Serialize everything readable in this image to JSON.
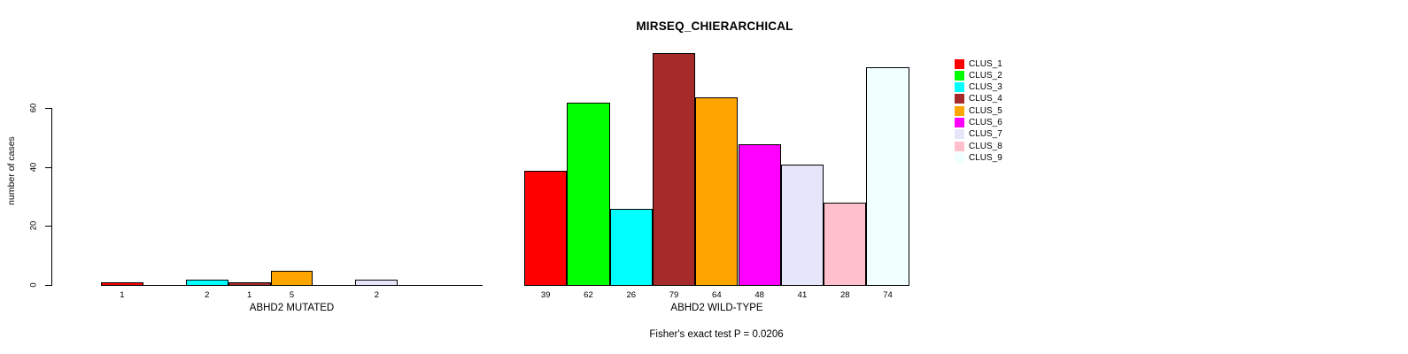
{
  "chart_data": {
    "type": "bar",
    "title": "MIRSEQ_CHIERARCHICAL",
    "ylabel": "number of cases",
    "yticks": [
      0,
      20,
      40,
      60
    ],
    "ylim": [
      0,
      79
    ],
    "grid": false,
    "legend_position": "right",
    "categories": [
      "CLUS_1",
      "CLUS_2",
      "CLUS_3",
      "CLUS_4",
      "CLUS_5",
      "CLUS_6",
      "CLUS_7",
      "CLUS_8",
      "CLUS_9"
    ],
    "colors": [
      "#FF0000",
      "#00FF00",
      "#00FFFF",
      "#A52A2A",
      "#FFA500",
      "#FF00FF",
      "#E6E6FA",
      "#FFC0CB",
      "#F0FFFF"
    ],
    "groups": [
      {
        "label": "ABHD2 MUTATED",
        "values": [
          1,
          0,
          2,
          1,
          5,
          0,
          2,
          0,
          0
        ]
      },
      {
        "label": "ABHD2 WILD-TYPE",
        "values": [
          39,
          62,
          26,
          79,
          64,
          48,
          41,
          28,
          74
        ]
      }
    ],
    "bar_label_rule": "value shown under each non-zero bar",
    "annotation": "Fisher's exact test P = 0.0206"
  }
}
